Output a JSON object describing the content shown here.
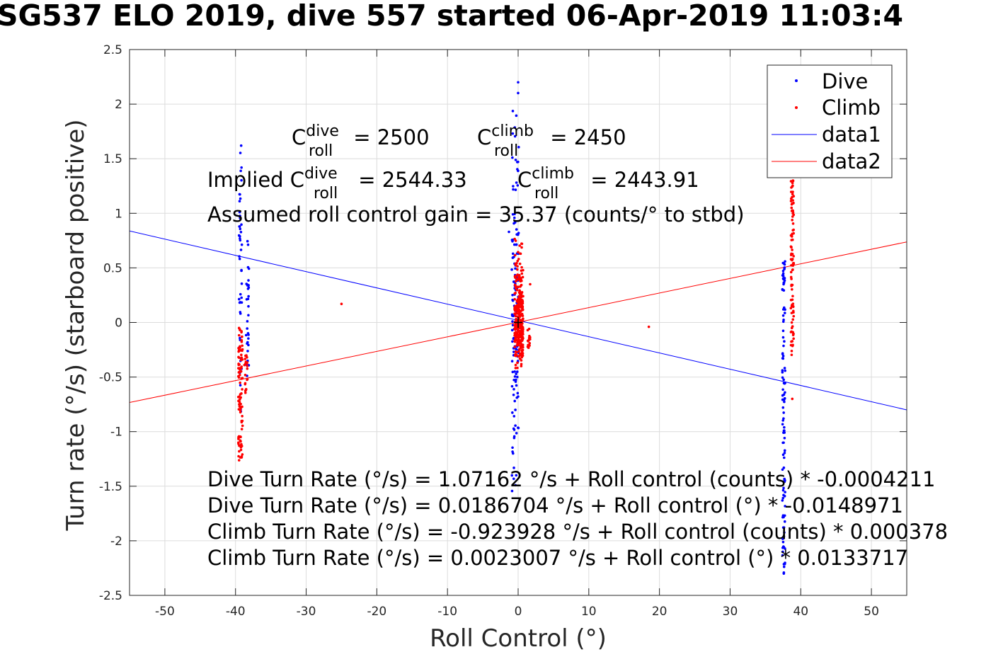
{
  "chart_data": {
    "type": "scatter",
    "title": "SG537 ELO 2019, dive 557 started 06-Apr-2019 11:03:4",
    "xlabel": "Roll Control (°)",
    "ylabel": "Turn rate (°/s) (starboard positive)",
    "xlim": [
      -55,
      55
    ],
    "ylim": [
      -2.5,
      2.5
    ],
    "x_ticks": [
      -50,
      -40,
      -30,
      -20,
      -10,
      0,
      10,
      20,
      30,
      40,
      50
    ],
    "x_tick_labels": [
      "-50",
      "-40",
      "-30",
      "-20",
      "-10",
      "0",
      "10",
      "20",
      "30",
      "40",
      "50"
    ],
    "y_ticks": [
      -2.5,
      -2,
      -1.5,
      -1,
      -0.5,
      0,
      0.5,
      1,
      1.5,
      2,
      2.5
    ],
    "y_tick_labels": [
      "-2.5",
      "-2",
      "-1.5",
      "-1",
      "-0.5",
      "0",
      "0.5",
      "1",
      "1.5",
      "2",
      "2.5"
    ],
    "grid": true,
    "legend_position": "top-right",
    "series": [
      {
        "name": "Dive",
        "kind": "points",
        "color": "#0000ff",
        "clusters": [
          {
            "x": -39.3,
            "x_spread": 0.4,
            "y_min": -0.85,
            "y_max": 1.62,
            "n": 45
          },
          {
            "x": -38.3,
            "x_spread": 0.4,
            "y_min": -0.5,
            "y_max": 0.75,
            "n": 30
          },
          {
            "x": -0.4,
            "x_spread": 1.0,
            "y_min": -1.85,
            "y_max": 2.2,
            "n": 140
          },
          {
            "x": 37.6,
            "x_spread": 0.4,
            "y_min": -2.3,
            "y_max": 0.65,
            "n": 110
          }
        ],
        "singles": [
          [
            -39.2,
            1.62
          ],
          [
            0.0,
            2.2
          ],
          [
            -1.3,
            0.83
          ],
          [
            37.6,
            -2.3
          ]
        ]
      },
      {
        "name": "Climb",
        "kind": "points",
        "color": "#ff0000",
        "clusters": [
          {
            "x": -39.3,
            "x_spread": 0.6,
            "y_min": -1.28,
            "y_max": -0.05,
            "n": 95
          },
          {
            "x": -38.5,
            "x_spread": 0.5,
            "y_min": -0.65,
            "y_max": -0.3,
            "n": 20
          },
          {
            "x": 0.1,
            "x_spread": 1.2,
            "y_min": -0.42,
            "y_max": 0.78,
            "n": 320
          },
          {
            "x": 1.5,
            "x_spread": 0.4,
            "y_min": -0.25,
            "y_max": -0.05,
            "n": 14
          },
          {
            "x": 38.8,
            "x_spread": 0.4,
            "y_min": -0.3,
            "y_max": 1.3,
            "n": 95
          }
        ],
        "singles": [
          [
            -25,
            0.17
          ],
          [
            18.5,
            -0.04
          ],
          [
            1.7,
            0.35
          ],
          [
            38.8,
            -0.7
          ],
          [
            38.9,
            1.3
          ]
        ]
      },
      {
        "name": "data1",
        "kind": "line",
        "color": "#0000ff",
        "intercept": 0.0186704,
        "slope": -0.0148971
      },
      {
        "name": "data2",
        "kind": "line",
        "color": "#ff0000",
        "intercept": 0.0023007,
        "slope": 0.0133717
      }
    ],
    "annotations": {
      "c_roll_dive": {
        "prefix": "C",
        "sup": "dive",
        "sub": "roll",
        "suffix": " = 2500"
      },
      "c_roll_climb": {
        "prefix": "C",
        "sup": "climb",
        "sub": "roll",
        "suffix": " = 2450"
      },
      "implied_dive": {
        "prefix": "Implied C",
        "sup": "dive",
        "sub": "roll",
        "suffix": " = 2544.33"
      },
      "implied_climb": {
        "prefix": "C",
        "sup": "climb",
        "sub": "roll",
        "suffix": " = 2443.91"
      },
      "gain": "Assumed roll control gain = 35.37 (counts/° to stbd)",
      "eq1": "Dive Turn Rate (°/s) = 1.07162 °/s + Roll control (counts) * -0.0004211",
      "eq2": "Dive Turn Rate (°/s) = 0.0186704 °/s + Roll control (°) * -0.0148971",
      "eq3": "Climb Turn Rate (°/s) = -0.923928 °/s + Roll control (counts) * 0.000378",
      "eq4": "Climb Turn Rate (°/s) = 0.0023007 °/s + Roll control (°) * 0.0133717"
    }
  }
}
